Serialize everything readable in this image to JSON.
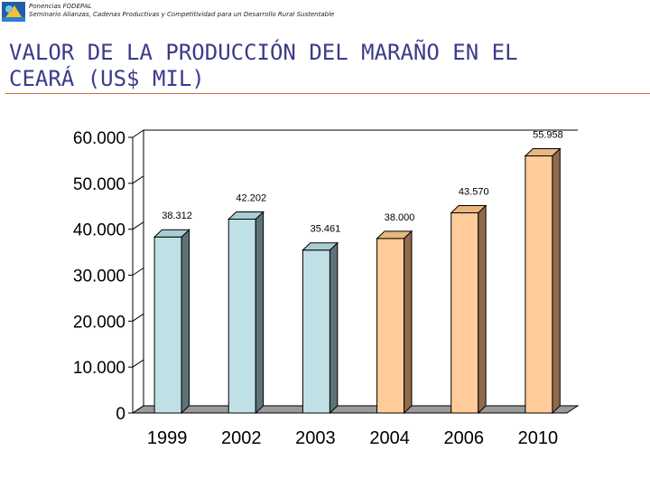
{
  "header": {
    "line1": "Ponencias FODEPAL",
    "line2": "Seminario Alianzas, Cadenas Productivas y Competitividad para un Desarrollo Rural Sustentable"
  },
  "slide": {
    "title_line1": "VALOR DE LA PRODUCCIÓN DEL MARAÑO EN EL",
    "title_line2": "CEARÁ (US$ MIL)"
  },
  "colors": {
    "accent": "#d46a3c",
    "title": "#3b3b8a",
    "bar_blue": "#bfe1e5",
    "bar_blue_side": "#5e7378",
    "bar_orange": "#ffcc99",
    "bar_orange_side": "#8f6a4c"
  },
  "chart_data": {
    "type": "bar",
    "title": "",
    "xlabel": "",
    "ylabel": "",
    "categories": [
      "1999",
      "2002",
      "2003",
      "2004",
      "2006",
      "2010"
    ],
    "values": [
      38312,
      42202,
      35461,
      38000,
      43570,
      55958
    ],
    "data_labels": [
      "38.312",
      "42.202",
      "35.461",
      "38.000",
      "43.570",
      "55.958"
    ],
    "bar_colors": [
      "blue",
      "blue",
      "blue",
      "orange",
      "orange",
      "orange"
    ],
    "ylim": [
      0,
      60000
    ],
    "yticks": [
      0,
      10000,
      20000,
      30000,
      40000,
      50000,
      60000
    ],
    "ytick_labels": [
      "0",
      "10.000",
      "20.000",
      "30.000",
      "40.000",
      "50.000",
      "60.000"
    ],
    "grid": false,
    "legend": "none"
  }
}
